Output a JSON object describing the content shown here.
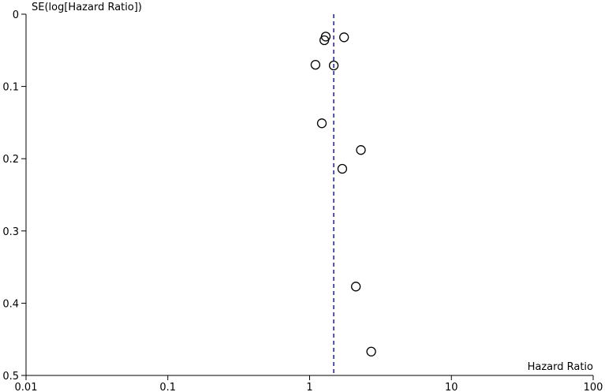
{
  "chart_data": {
    "type": "scatter",
    "title": "",
    "xlabel": "Hazard Ratio",
    "ylabel": "SE(log[Hazard Ratio])",
    "x_scale": "log",
    "y_axis_inverted": true,
    "xlim": [
      0.01,
      100
    ],
    "ylim": [
      0,
      0.5
    ],
    "x_ticks": [
      0.01,
      0.1,
      1,
      10,
      100
    ],
    "x_tick_labels": [
      "0.01",
      "0.1",
      "1",
      "10",
      "100"
    ],
    "y_ticks": [
      0,
      0.1,
      0.2,
      0.3,
      0.4,
      0.5
    ],
    "y_tick_labels": [
      "0",
      "0.1",
      "0.2",
      "0.3",
      "0.4",
      "0.5"
    ],
    "grid": false,
    "reference_line": {
      "x": 1.48,
      "style": "dashed",
      "color": "#2a2a9c"
    },
    "marker_color": "#000000",
    "points": [
      {
        "x": 1.3,
        "y": 0.031
      },
      {
        "x": 1.75,
        "y": 0.032
      },
      {
        "x": 1.27,
        "y": 0.036
      },
      {
        "x": 1.1,
        "y": 0.07
      },
      {
        "x": 1.48,
        "y": 0.071
      },
      {
        "x": 1.22,
        "y": 0.151
      },
      {
        "x": 2.3,
        "y": 0.188
      },
      {
        "x": 1.7,
        "y": 0.214
      },
      {
        "x": 2.12,
        "y": 0.377
      },
      {
        "x": 2.72,
        "y": 0.467
      }
    ]
  }
}
